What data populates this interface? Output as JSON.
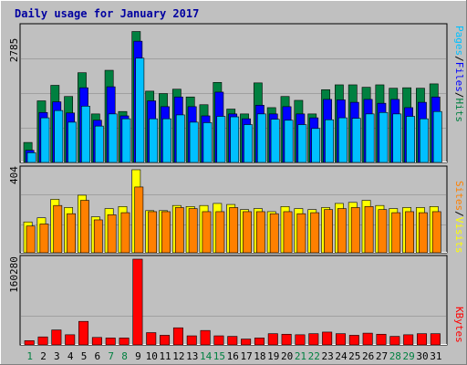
{
  "title": "Daily usage for January 2017",
  "colors": {
    "hits": "#008040",
    "files": "#0000ff",
    "pages": "#00c0ff",
    "visits": "#ffff00",
    "sites": "#ff8000",
    "kbytes": "#ff0000",
    "weekend_label": "#008040",
    "weekday_label": "#000000",
    "title": "#0000a0"
  },
  "legend": {
    "hits": "Hits",
    "files": "Files",
    "pages": "Pages",
    "visits": "Visits",
    "sites": "Sites",
    "kbytes": "KBytes",
    "sep": "/"
  },
  "chart_data": {
    "type": "bar",
    "title": "Daily usage for January 2017",
    "categories": [
      "1",
      "2",
      "3",
      "4",
      "5",
      "6",
      "7",
      "8",
      "9",
      "10",
      "11",
      "12",
      "13",
      "14",
      "15",
      "16",
      "17",
      "18",
      "19",
      "20",
      "21",
      "22",
      "23",
      "24",
      "25",
      "26",
      "27",
      "28",
      "29",
      "30",
      "31"
    ],
    "weekend_days": [
      "1",
      "7",
      "8",
      "14",
      "15",
      "21",
      "22",
      "28",
      "29"
    ],
    "panels": [
      {
        "name": "hits-files-pages",
        "ymax_label": "2785",
        "ylim": [
          0,
          2785
        ],
        "series": [
          {
            "name": "Hits",
            "values": [
              412,
              1270,
              1590,
              1360,
              1850,
              1000,
              1900,
              1050,
              2700,
              1470,
              1420,
              1510,
              1350,
              1190,
              1650,
              1100,
              1000,
              1640,
              1130,
              1360,
              1280,
              1000,
              1500,
              1600,
              1600,
              1550,
              1600,
              1530,
              1540,
              1530,
              1620
            ]
          },
          {
            "name": "Files",
            "values": [
              250,
              1030,
              1250,
              1020,
              1540,
              870,
              1560,
              960,
              2500,
              1270,
              1150,
              1350,
              1150,
              960,
              1450,
              1000,
              900,
              1180,
              1000,
              1150,
              1000,
              920,
              1300,
              1290,
              1240,
              1300,
              1220,
              1300,
              1130,
              1240,
              1350
            ]
          },
          {
            "name": "Pages",
            "values": [
              200,
              920,
              1070,
              830,
              1160,
              750,
              1000,
              900,
              2150,
              900,
              900,
              980,
              830,
              820,
              950,
              940,
              780,
              1000,
              890,
              870,
              780,
              700,
              880,
              920,
              910,
              1000,
              1030,
              1000,
              950,
              900,
              1050
            ]
          }
        ]
      },
      {
        "name": "visits-sites",
        "ymax_label": "404",
        "ylim": [
          0,
          404
        ],
        "series": [
          {
            "name": "Visits",
            "values": [
              150,
              170,
              260,
              220,
              280,
              175,
              215,
              225,
              404,
              205,
              205,
              230,
              225,
              230,
              240,
              235,
              210,
              215,
              200,
              225,
              215,
              210,
              220,
              240,
              245,
              255,
              230,
              215,
              220,
              220,
              225
            ]
          },
          {
            "name": "Sites",
            "values": [
              130,
              140,
              230,
              190,
              255,
              160,
              185,
              195,
              320,
              200,
              200,
              220,
              215,
              200,
              200,
              220,
              200,
              200,
              190,
              200,
              190,
              195,
              210,
              215,
              220,
              225,
              210,
              195,
              200,
              195,
              200
            ]
          }
        ]
      },
      {
        "name": "kbytes",
        "ymax_label": "160280",
        "ylim": [
          0,
          160280
        ],
        "series": [
          {
            "name": "KBytes",
            "values": [
              8000,
              15000,
              28000,
              19000,
              44000,
              14000,
              13000,
              13000,
              160280,
              23000,
              18000,
              32000,
              17000,
              27000,
              17000,
              16000,
              11000,
              13000,
              21000,
              20000,
              19000,
              21000,
              24000,
              21000,
              18000,
              22000,
              20000,
              16000,
              19000,
              21000,
              21000
            ]
          }
        ]
      }
    ]
  }
}
